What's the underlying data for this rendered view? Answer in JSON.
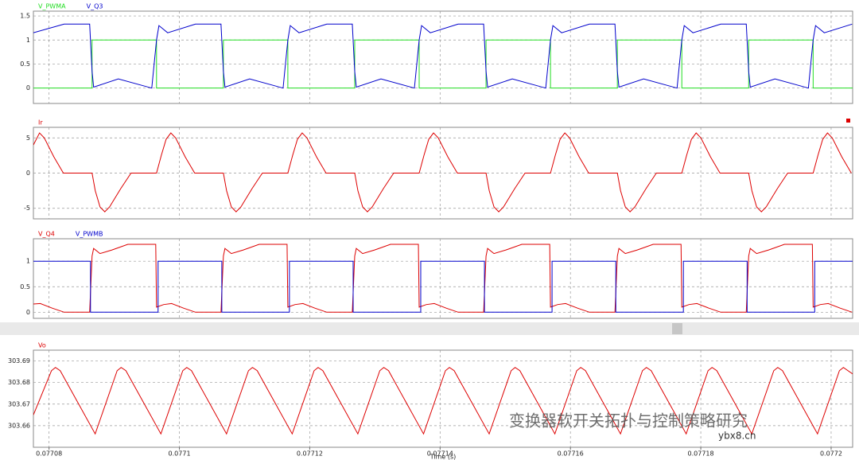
{
  "chart_data": [
    {
      "type": "line",
      "ylim": [
        -0.32,
        1.6
      ],
      "yticks": [
        0,
        0.5,
        1,
        1.5
      ],
      "grid": true,
      "series": [
        {
          "name": "V_PWMA",
          "color": "#22dd22",
          "x": [
            0.0770776,
            0.0770866,
            0.0770866,
            0.07709649,
            0.07709649,
            0.07710675,
            0.07710675,
            0.07711664,
            0.07711664,
            0.0771269,
            0.0771269,
            0.07713679,
            0.07713679,
            0.07714705,
            0.07714705,
            0.07715694,
            0.07715694,
            0.0771672,
            0.0771672,
            0.07717709,
            0.07717709,
            0.07718735,
            0.07718735,
            0.07719724,
            0.07719724,
            0.0772033
          ],
          "values": [
            0,
            0,
            1,
            1,
            0,
            0,
            1,
            1,
            0,
            0,
            1,
            1,
            0,
            0,
            1,
            1,
            0,
            0,
            1,
            1,
            0,
            0,
            1,
            1,
            0,
            0
          ]
        },
        {
          "name": "V_Q3",
          "color": "#0000cc",
          "x": [
            0.0770776,
            0.07708232,
            0.07708623,
            0.0770866,
            0.07708684,
            0.07709063,
            0.07709576,
            0.07709649,
            0.07709686,
            0.0770982,
            0.07710247,
            0.07710638,
            0.07710675,
            0.07710699,
            0.07711078,
            0.07711591,
            0.07711664,
            0.07711701,
            0.07711835,
            0.07712262,
            0.07712653,
            0.0771269,
            0.07712714,
            0.07713093,
            0.07713606,
            0.07713679,
            0.07713716,
            0.0771385,
            0.07714277,
            0.07714668,
            0.07714705,
            0.07714729,
            0.07715108,
            0.07715621,
            0.07715694,
            0.07715731,
            0.07715865,
            0.07716292,
            0.07716683,
            0.0771672,
            0.07716744,
            0.07717123,
            0.07717636,
            0.07717709,
            0.07717746,
            0.0771788,
            0.07718307,
            0.07718698,
            0.07718735,
            0.07718759,
            0.07719138,
            0.07719651,
            0.07719724,
            0.07719761,
            0.07719895,
            0.07720322
          ],
          "values": [
            1.15,
            1.33,
            1.33,
            0.35,
            0.02,
            0.19,
            0,
            1,
            1.3,
            1.15,
            1.33,
            1.33,
            0.35,
            0.02,
            0.19,
            0,
            1,
            1.3,
            1.15,
            1.33,
            1.33,
            0.35,
            0.02,
            0.19,
            0,
            1,
            1.3,
            1.15,
            1.33,
            1.33,
            0.35,
            0.02,
            0.19,
            0,
            1,
            1.3,
            1.15,
            1.33,
            1.33,
            0.35,
            0.02,
            0.19,
            0,
            1,
            1.3,
            1.15,
            1.33,
            1.33,
            0.35,
            0.02,
            0.19,
            0,
            1,
            1.3,
            1.15,
            1.33
          ]
        }
      ]
    },
    {
      "type": "line",
      "ylim": [
        -6.5,
        6.5
      ],
      "yticks": [
        -5,
        0,
        5
      ],
      "grid": true,
      "series": [
        {
          "name": "Ir",
          "color": "#dd0000",
          "x": [
            0.0770776,
            0.07707854,
            0.07707927,
            0.07708074,
            0.0770822,
            0.0770866,
            0.07708709,
            0.07708782,
            0.07708855,
            0.07708929,
            0.077091,
            0.07709258,
            0.07709649,
            0.07709722,
            0.07709796,
            0.07709869,
            0.07709942,
            0.07710089,
            0.07710235,
            0.07710675,
            0.07710724,
            0.07710797,
            0.0771087,
            0.07710944,
            0.07711115,
            0.07711273,
            0.07711664,
            0.07711737,
            0.07711811,
            0.07711884,
            0.07711957,
            0.07712104,
            0.0771225,
            0.0771269,
            0.07712739,
            0.07712812,
            0.07712885,
            0.07712959,
            0.0771313,
            0.07713288,
            0.07713679,
            0.07713752,
            0.07713826,
            0.07713899,
            0.07713972,
            0.07714119,
            0.07714265,
            0.07714705,
            0.07714754,
            0.07714827,
            0.077149,
            0.07714974,
            0.07715145,
            0.07715303,
            0.07715694,
            0.07715767,
            0.07715841,
            0.07715914,
            0.07715987,
            0.07716134,
            0.0771628,
            0.0771672,
            0.07716769,
            0.07716842,
            0.07716915,
            0.07716989,
            0.0771716,
            0.07717318,
            0.07717709,
            0.07717782,
            0.07717856,
            0.07717929,
            0.07718002,
            0.07718149,
            0.07718295,
            0.07718735,
            0.07718784,
            0.07718857,
            0.0771893,
            0.07719004,
            0.07719175,
            0.07719333,
            0.07719724,
            0.07719797,
            0.07719871,
            0.07719944,
            0.07720017,
            0.07720164,
            0.0772031
          ],
          "values": [
            4,
            5.7,
            5,
            2.3,
            0,
            0,
            -2.5,
            -4.8,
            -5.5,
            -4.8,
            -2.2,
            0,
            0,
            2.5,
            4.8,
            5.7,
            5,
            2.3,
            0,
            0,
            -2.5,
            -4.8,
            -5.5,
            -4.8,
            -2.2,
            0,
            0,
            2.5,
            4.8,
            5.7,
            5,
            2.3,
            0,
            0,
            -2.5,
            -4.8,
            -5.5,
            -4.8,
            -2.2,
            0,
            0,
            2.5,
            4.8,
            5.7,
            5,
            2.3,
            0,
            0,
            -2.5,
            -4.8,
            -5.5,
            -4.8,
            -2.2,
            0,
            0,
            2.5,
            4.8,
            5.7,
            5,
            2.3,
            0,
            0,
            -2.5,
            -4.8,
            -5.5,
            -4.8,
            -2.2,
            0,
            0,
            2.5,
            4.8,
            5.7,
            5,
            2.3,
            0,
            0,
            -2.5,
            -4.8,
            -5.5,
            -4.8,
            -2.2,
            0,
            0,
            2.5,
            4.8,
            5.7,
            5,
            2.3,
            0
          ]
        }
      ]
    },
    {
      "type": "line",
      "ylim": [
        -0.12,
        1.44
      ],
      "yticks": [
        0,
        0.5,
        1
      ],
      "grid": true,
      "series": [
        {
          "name": "V_Q4",
          "color": "#dd0000",
          "x": [
            0.0770776,
            0.07707866,
            0.07708049,
            0.07708232,
            0.07708623,
            0.0770866,
            0.07708684,
            0.07708782,
            0.07708965,
            0.07709209,
            0.07709637,
            0.07709649,
            0.07709759,
            0.07709881,
            0.07710064,
            0.07710247,
            0.07710638,
            0.07710675,
            0.07710699,
            0.07710797,
            0.0771098,
            0.07711224,
            0.07711652,
            0.07711664,
            0.07711774,
            0.07711896,
            0.07712079,
            0.07712262,
            0.07712653,
            0.0771269,
            0.07712714,
            0.07712812,
            0.07712995,
            0.07713239,
            0.07713667,
            0.07713679,
            0.07713789,
            0.07713911,
            0.07714094,
            0.07714277,
            0.07714668,
            0.07714705,
            0.07714729,
            0.07714827,
            0.0771501,
            0.07715254,
            0.07715682,
            0.07715694,
            0.07715804,
            0.07715926,
            0.07716109,
            0.07716292,
            0.07716683,
            0.0771672,
            0.07716744,
            0.07716842,
            0.07717025,
            0.07717269,
            0.07717697,
            0.07717709,
            0.07717819,
            0.07717941,
            0.07718124,
            0.07718307,
            0.07718698,
            0.07718735,
            0.07718759,
            0.07718857,
            0.0771904,
            0.07719284,
            0.07719712,
            0.07719724,
            0.07719834,
            0.07719956,
            0.07720139,
            0.07720322
          ],
          "values": [
            0.16,
            0.17,
            0.08,
            0,
            0,
            1.1,
            1.25,
            1.15,
            1.22,
            1.33,
            1.33,
            0.1,
            0.15,
            0.17,
            0.08,
            0,
            0,
            1.1,
            1.25,
            1.15,
            1.22,
            1.33,
            1.33,
            0.1,
            0.15,
            0.17,
            0.08,
            0,
            0,
            1.1,
            1.25,
            1.15,
            1.22,
            1.33,
            1.33,
            0.1,
            0.15,
            0.17,
            0.08,
            0,
            0,
            1.1,
            1.25,
            1.15,
            1.22,
            1.33,
            1.33,
            0.1,
            0.15,
            0.17,
            0.08,
            0,
            0,
            1.1,
            1.25,
            1.15,
            1.22,
            1.33,
            1.33,
            0.1,
            0.15,
            0.17,
            0.08,
            0,
            0,
            1.1,
            1.25,
            1.15,
            1.22,
            1.33,
            1.33,
            0.1,
            0.15,
            0.17,
            0.08,
            0
          ]
        },
        {
          "name": "V_PWMB",
          "color": "#0000cc",
          "x": [
            0.0770776,
            0.07708636,
            0.07708636,
            0.07709673,
            0.07709673,
            0.07710651,
            0.07710651,
            0.07711688,
            0.07711688,
            0.07712666,
            0.07712666,
            0.07713703,
            0.07713703,
            0.07714681,
            0.07714681,
            0.07715718,
            0.07715718,
            0.07716696,
            0.07716696,
            0.07717733,
            0.07717733,
            0.07718711,
            0.07718711,
            0.07719748,
            0.07719748,
            0.0772033
          ],
          "values": [
            1,
            1,
            0,
            0,
            1,
            1,
            0,
            0,
            1,
            1,
            0,
            0,
            1,
            1,
            0,
            0,
            1,
            1,
            0,
            0,
            1,
            1,
            0,
            0,
            1,
            1
          ]
        }
      ]
    },
    {
      "type": "line",
      "ylim": [
        303.65,
        303.695
      ],
      "yticks": [
        303.66,
        303.67,
        303.68,
        303.69
      ],
      "grid": true,
      "xlim": [
        0.0770776,
        0.0772033
      ],
      "xticks": [
        0.07708,
        0.0771,
        0.07712,
        0.07714,
        0.07716,
        0.07718,
        0.0772
      ],
      "xlabel": "Time (s)",
      "series": [
        {
          "name": "Vo",
          "color": "#dd0000",
          "x": [
            0.0770776,
            0.07708037,
            0.07708098,
            0.07708171,
            0.07708708,
            0.07709045,
            0.07709106,
            0.07709179,
            0.07709716,
            0.07710052,
            0.07710113,
            0.07710186,
            0.07710723,
            0.0771106,
            0.07711121,
            0.07711194,
            0.07711731,
            0.07712067,
            0.07712128,
            0.07712201,
            0.07712738,
            0.07713075,
            0.07713136,
            0.07713209,
            0.07713746,
            0.07714082,
            0.07714143,
            0.07714216,
            0.07714753,
            0.0771509,
            0.07715151,
            0.07715224,
            0.07715761,
            0.07716097,
            0.07716158,
            0.07716231,
            0.07716768,
            0.07717105,
            0.07717166,
            0.07717239,
            0.07717776,
            0.07718112,
            0.07718173,
            0.07718246,
            0.07718783,
            0.0771912,
            0.07719181,
            0.07719254,
            0.07719791,
            0.07720127,
            0.07720188,
            0.0772033
          ],
          "values": [
            303.665,
            303.6855,
            303.687,
            303.6855,
            303.6562,
            303.6855,
            303.687,
            303.6855,
            303.6562,
            303.6855,
            303.687,
            303.6855,
            303.6562,
            303.6855,
            303.687,
            303.6855,
            303.6562,
            303.6855,
            303.687,
            303.6855,
            303.6562,
            303.6855,
            303.687,
            303.6855,
            303.6562,
            303.6855,
            303.687,
            303.6855,
            303.6562,
            303.6855,
            303.687,
            303.6855,
            303.6562,
            303.6855,
            303.687,
            303.6855,
            303.6562,
            303.6855,
            303.687,
            303.6855,
            303.6562,
            303.6855,
            303.687,
            303.6855,
            303.6562,
            303.6855,
            303.687,
            303.6855,
            303.6562,
            303.6855,
            303.687,
            303.684
          ]
        }
      ]
    }
  ],
  "watermark": {
    "text": "变换器软开关拓扑与控制策略研究",
    "site": "ybx8.cn"
  }
}
